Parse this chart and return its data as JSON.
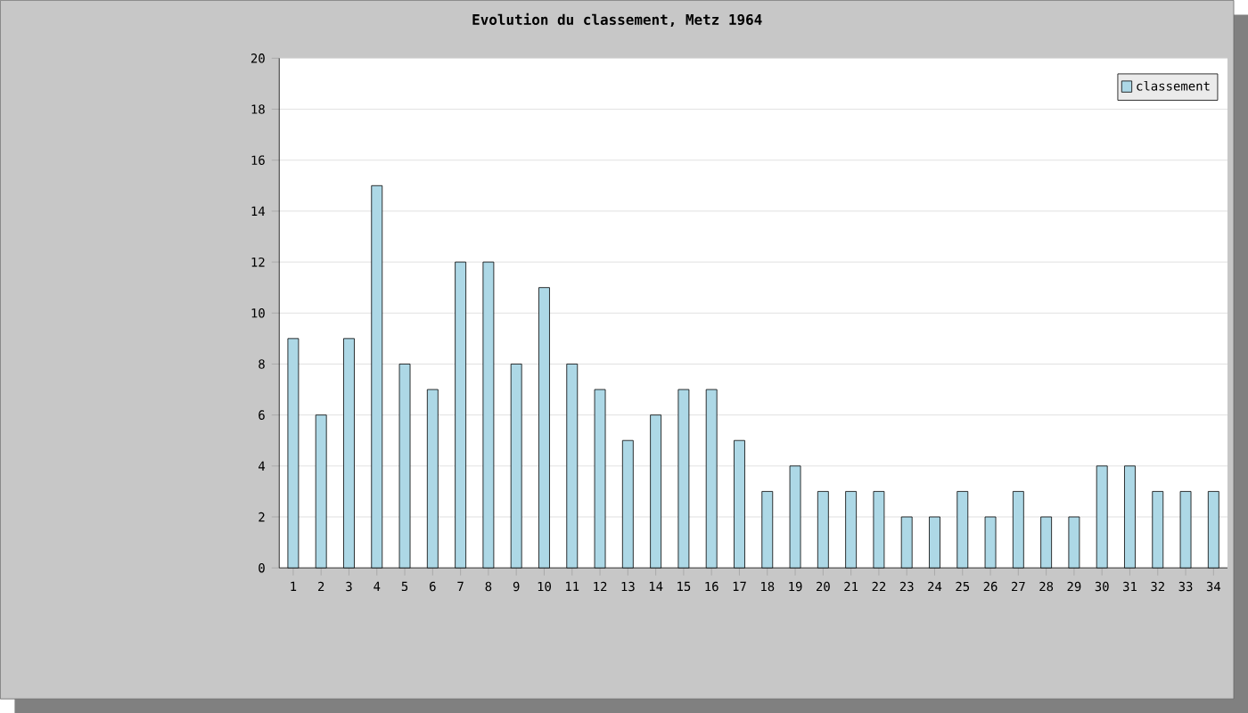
{
  "chart_data": {
    "type": "bar",
    "title": "Evolution du classement, Metz 1964",
    "categories": [
      "1",
      "2",
      "3",
      "4",
      "5",
      "6",
      "7",
      "8",
      "9",
      "10",
      "11",
      "12",
      "13",
      "14",
      "15",
      "16",
      "17",
      "18",
      "19",
      "20",
      "21",
      "22",
      "23",
      "24",
      "25",
      "26",
      "27",
      "28",
      "29",
      "30",
      "31",
      "32",
      "33",
      "34"
    ],
    "series": [
      {
        "name": "classement",
        "color": "#add8e6",
        "values": [
          9,
          6,
          9,
          15,
          8,
          7,
          12,
          12,
          8,
          11,
          8,
          7,
          5,
          6,
          7,
          7,
          5,
          3,
          4,
          3,
          3,
          3,
          2,
          2,
          3,
          2,
          3,
          2,
          2,
          4,
          4,
          3,
          3,
          3
        ]
      }
    ],
    "ylim": [
      0,
      20
    ],
    "yticks": [
      0,
      2,
      4,
      6,
      8,
      10,
      12,
      14,
      16,
      18,
      20
    ],
    "grid": "y",
    "legend": "top right"
  }
}
